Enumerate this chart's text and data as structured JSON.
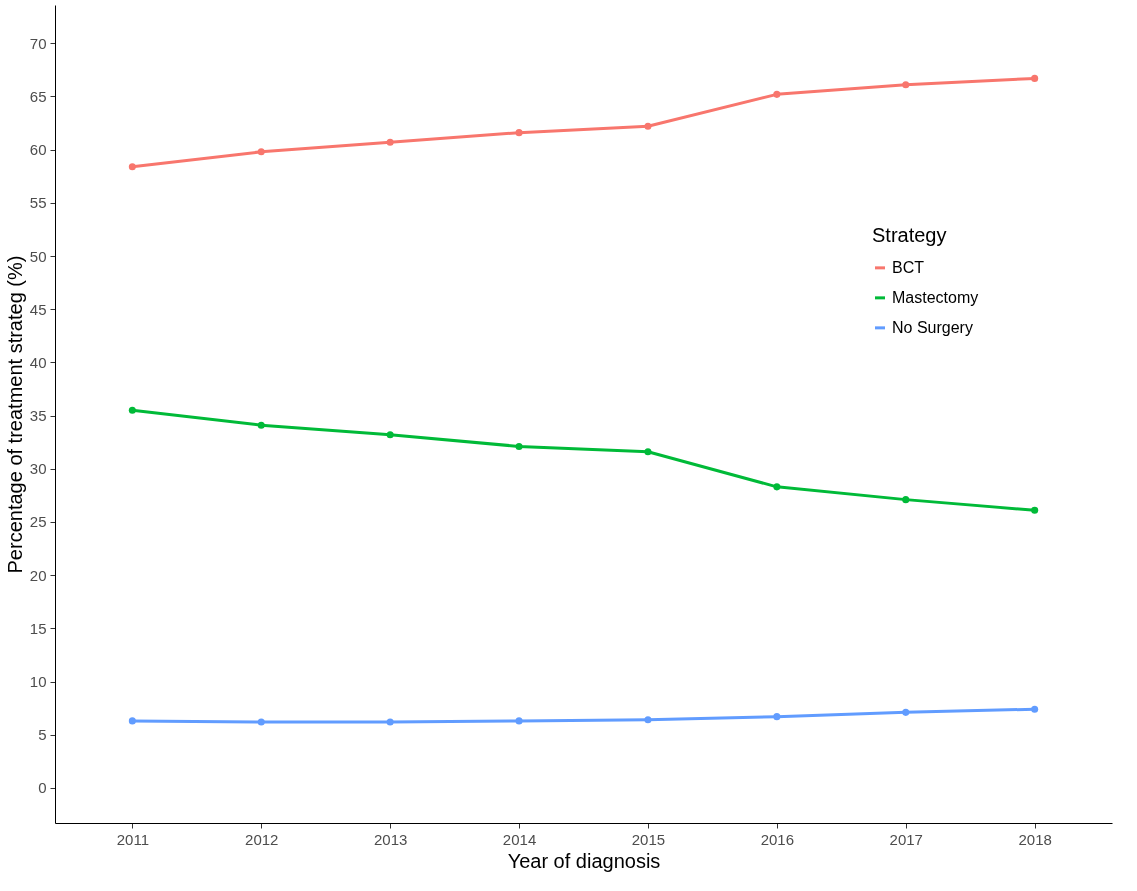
{
  "chart_data": {
    "type": "line",
    "xlabel": "Year of diagnosis",
    "ylabel": "Percentage of treatment strateg (%)",
    "legend_title": "Strategy",
    "categories": [
      "2011",
      "2012",
      "2013",
      "2014",
      "2015",
      "2016",
      "2017",
      "2018"
    ],
    "series": [
      {
        "name": "BCT",
        "color": "#f8766d",
        "values": [
          58.4,
          59.8,
          60.7,
          61.6,
          62.2,
          65.2,
          66.1,
          66.7
        ]
      },
      {
        "name": "Mastectomy",
        "color": "#00ba38",
        "values": [
          35.5,
          34.1,
          33.2,
          32.1,
          31.6,
          28.3,
          27.1,
          26.1
        ]
      },
      {
        "name": "No Surgery",
        "color": "#619cff",
        "values": [
          6.3,
          6.2,
          6.2,
          6.3,
          6.4,
          6.7,
          7.1,
          7.4
        ]
      }
    ],
    "ylim": [
      -3.3,
      73.6
    ],
    "yticks": [
      0,
      5,
      10,
      15,
      20,
      25,
      30,
      35,
      40,
      45,
      50,
      55,
      60,
      65,
      70
    ],
    "grid": false,
    "legend": "right",
    "marker": "circle",
    "line_style": "solid"
  }
}
